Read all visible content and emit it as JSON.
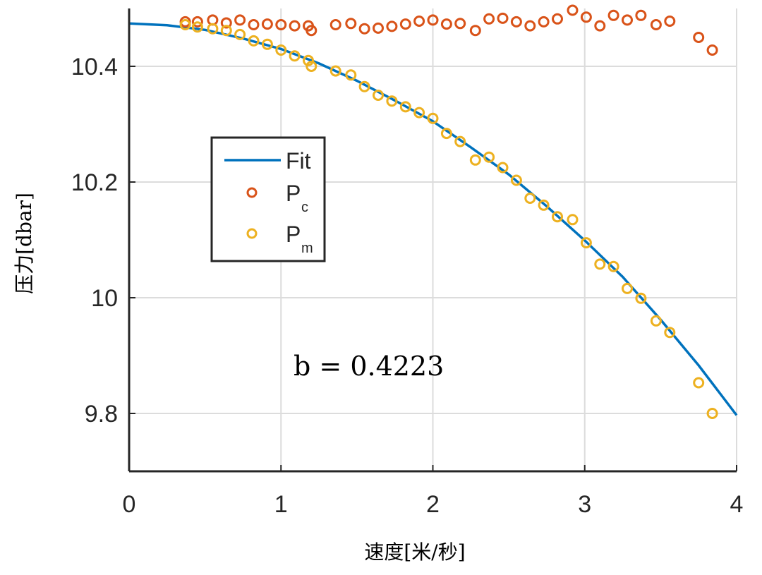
{
  "chart_data": {
    "type": "scatter",
    "title": "",
    "xlabel": "速度[米/秒]",
    "ylabel": "压力[dbar]",
    "xlim": [
      0,
      4
    ],
    "ylim": [
      9.7,
      10.5
    ],
    "x_ticks": [
      "0",
      "1",
      "2",
      "3",
      "4"
    ],
    "y_ticks": [
      "9.8",
      "10",
      "10.2",
      "10.4"
    ],
    "grid": true,
    "legend_placement": "center-left",
    "annotation": "b = 0.4223",
    "series": [
      {
        "name": "Fit",
        "subscript": "",
        "kind": "line",
        "color": "#0072BD",
        "x": [
          0,
          0.25,
          0.5,
          0.75,
          1.0,
          1.25,
          1.5,
          1.75,
          2.0,
          2.25,
          2.5,
          2.75,
          3.0,
          3.25,
          3.5,
          3.75,
          4.0
        ],
        "y": [
          10.474,
          10.471,
          10.463,
          10.448,
          10.43,
          10.405,
          10.375,
          10.341,
          10.305,
          10.26,
          10.213,
          10.158,
          10.099,
          10.036,
          9.962,
          9.883,
          9.797
        ]
      },
      {
        "name": "P",
        "subscript": "c",
        "kind": "scatter",
        "color": "#D95319",
        "x": [
          0.37,
          0.45,
          0.55,
          0.64,
          0.73,
          0.82,
          0.91,
          1.0,
          1.09,
          1.18,
          1.2,
          1.36,
          1.46,
          1.55,
          1.64,
          1.73,
          1.82,
          1.91,
          2.0,
          2.09,
          2.18,
          2.28,
          2.37,
          2.46,
          2.55,
          2.64,
          2.73,
          2.82,
          2.92,
          3.01,
          3.1,
          3.19,
          3.28,
          3.37,
          3.47,
          3.56,
          3.75,
          3.84
        ],
        "y": [
          10.477,
          10.477,
          10.48,
          10.475,
          10.48,
          10.472,
          10.473,
          10.472,
          10.47,
          10.47,
          10.462,
          10.472,
          10.474,
          10.465,
          10.466,
          10.469,
          10.473,
          10.478,
          10.48,
          10.473,
          10.474,
          10.462,
          10.482,
          10.483,
          10.477,
          10.47,
          10.477,
          10.482,
          10.497,
          10.485,
          10.47,
          10.488,
          10.48,
          10.488,
          10.472,
          10.478,
          10.45,
          10.428
        ]
      },
      {
        "name": "P",
        "subscript": "m",
        "kind": "scatter",
        "color": "#EDB120",
        "x": [
          0.37,
          0.45,
          0.55,
          0.64,
          0.73,
          0.82,
          0.91,
          1.0,
          1.09,
          1.18,
          1.2,
          1.36,
          1.46,
          1.55,
          1.64,
          1.73,
          1.82,
          1.91,
          2.0,
          2.09,
          2.18,
          2.28,
          2.37,
          2.46,
          2.55,
          2.64,
          2.73,
          2.82,
          2.92,
          3.01,
          3.1,
          3.19,
          3.28,
          3.37,
          3.47,
          3.56,
          3.75,
          3.84
        ],
        "y": [
          10.472,
          10.468,
          10.465,
          10.462,
          10.455,
          10.444,
          10.438,
          10.428,
          10.418,
          10.41,
          10.4,
          10.392,
          10.385,
          10.365,
          10.35,
          10.34,
          10.33,
          10.32,
          10.31,
          10.284,
          10.27,
          10.238,
          10.243,
          10.225,
          10.203,
          10.172,
          10.16,
          10.14,
          10.135,
          10.095,
          10.058,
          10.054,
          10.016,
          9.999,
          9.96,
          9.94,
          9.853,
          9.8
        ]
      }
    ]
  }
}
